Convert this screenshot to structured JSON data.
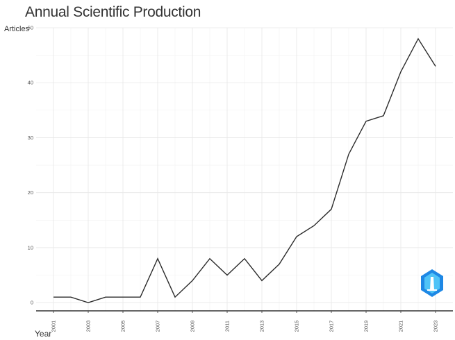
{
  "chart_data": {
    "type": "line",
    "title": "Annual Scientific Production",
    "xlabel": "Year",
    "ylabel": "Articles",
    "x": [
      2001,
      2002,
      2003,
      2004,
      2005,
      2006,
      2007,
      2008,
      2009,
      2010,
      2011,
      2012,
      2013,
      2014,
      2015,
      2016,
      2017,
      2018,
      2019,
      2020,
      2021,
      2022,
      2023
    ],
    "series": [
      {
        "values": [
          1,
          1,
          0,
          1,
          1,
          1,
          8,
          1,
          4,
          8,
          5,
          8,
          4,
          7,
          12,
          14,
          17,
          27,
          33,
          34,
          42,
          48,
          43
        ]
      }
    ],
    "x_ticks": [
      "2001",
      "2003",
      "2005",
      "2007",
      "2009",
      "2011",
      "2013",
      "2015",
      "2017",
      "2019",
      "2021",
      "2023"
    ],
    "y_ticks": [
      "0",
      "10",
      "20",
      "30",
      "40",
      "50"
    ],
    "xlim": [
      2000,
      2024
    ],
    "ylim": [
      -1.5,
      50
    ],
    "grid": true,
    "line_color": "#2b2b2b",
    "watermark_colors": [
      "#1e88e5",
      "#4fc3f7"
    ],
    "watermark_icon": "lighthouse-badge-icon"
  }
}
